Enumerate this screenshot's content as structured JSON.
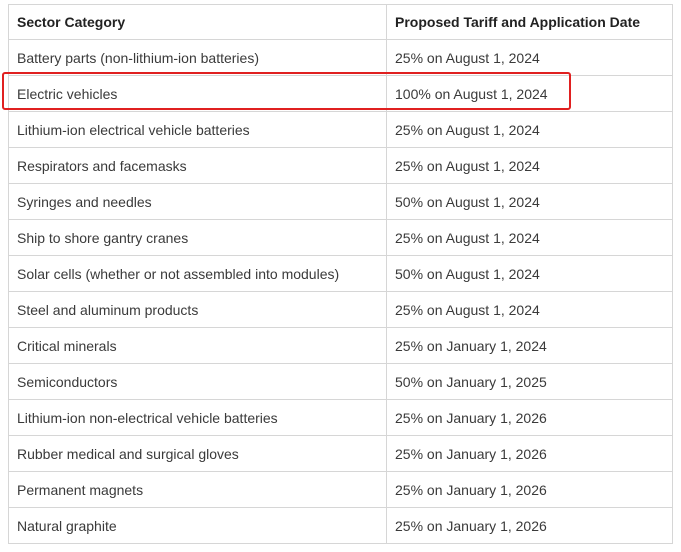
{
  "table": {
    "headers": {
      "sector": "Sector Category",
      "tariff": "Proposed Tariff and Application Date"
    },
    "rows": [
      {
        "sector": "Battery parts (non-lithium-ion batteries)",
        "tariff": "25% on August 1, 2024"
      },
      {
        "sector": "Electric vehicles",
        "tariff": "100% on August 1, 2024",
        "highlighted": true
      },
      {
        "sector": "Lithium-ion electrical vehicle batteries",
        "tariff": "25% on August 1, 2024"
      },
      {
        "sector": "Respirators and facemasks",
        "tariff": "25% on August 1, 2024"
      },
      {
        "sector": "Syringes and needles",
        "tariff": "50% on August 1, 2024"
      },
      {
        "sector": "Ship to shore gantry cranes",
        "tariff": "25% on August 1, 2024"
      },
      {
        "sector": "Solar cells (whether or not assembled into modules)",
        "tariff": "50% on August 1, 2024"
      },
      {
        "sector": "Steel and aluminum products",
        "tariff": "25% on August 1, 2024"
      },
      {
        "sector": "Critical minerals",
        "tariff": "25% on January 1, 2024"
      },
      {
        "sector": "Semiconductors",
        "tariff": "50% on January 1, 2025"
      },
      {
        "sector": "Lithium-ion non-electrical vehicle batteries",
        "tariff": "25% on January 1, 2026"
      },
      {
        "sector": "Rubber medical and surgical gloves",
        "tariff": "25% on January 1, 2026"
      },
      {
        "sector": "Permanent magnets",
        "tariff": "25% on January 1, 2026"
      },
      {
        "sector": "Natural graphite",
        "tariff": "25% on January 1, 2026"
      }
    ]
  },
  "colors": {
    "highlight": "#e02020",
    "border": "#d6d6d6",
    "text": "#333333"
  }
}
